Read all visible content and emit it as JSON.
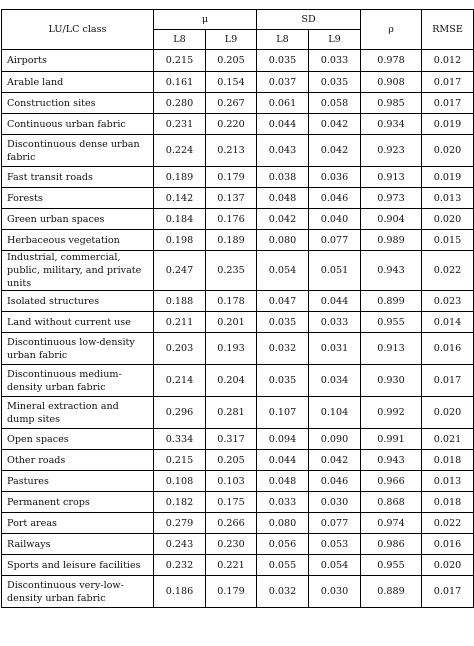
{
  "header": {
    "class_label": "LU/LC class",
    "mu_label": "μ",
    "sd_label": "SD",
    "rho_label": "ρ",
    "rmse_label": "RMSE",
    "l8_label": "L8",
    "l9_label": "L9"
  },
  "rows": [
    {
      "name": "Airports",
      "mu_l8": "0.215",
      "mu_l9": "0.205",
      "sd_l8": "0.035",
      "sd_l9": "0.033",
      "rho": "0.978",
      "rmse": "0.012"
    },
    {
      "name": "Arable land",
      "mu_l8": "0.161",
      "mu_l9": "0.154",
      "sd_l8": "0.037",
      "sd_l9": "0.035",
      "rho": "0.908",
      "rmse": "0.017"
    },
    {
      "name": "Construction sites",
      "mu_l8": "0.280",
      "mu_l9": "0.267",
      "sd_l8": "0.061",
      "sd_l9": "0.058",
      "rho": "0.985",
      "rmse": "0.017"
    },
    {
      "name": "Continuous urban fabric",
      "mu_l8": "0.231",
      "mu_l9": "0.220",
      "sd_l8": "0.044",
      "sd_l9": "0.042",
      "rho": "0.934",
      "rmse": "0.019"
    },
    {
      "name": "Discontinuous dense urban fabric",
      "mu_l8": "0.224",
      "mu_l9": "0.213",
      "sd_l8": "0.043",
      "sd_l9": "0.042",
      "rho": "0.923",
      "rmse": "0.020"
    },
    {
      "name": "Fast transit roads",
      "mu_l8": "0.189",
      "mu_l9": "0.179",
      "sd_l8": "0.038",
      "sd_l9": "0.036",
      "rho": "0.913",
      "rmse": "0.019"
    },
    {
      "name": "Forests",
      "mu_l8": "0.142",
      "mu_l9": "0.137",
      "sd_l8": "0.048",
      "sd_l9": "0.046",
      "rho": "0.973",
      "rmse": "0.013"
    },
    {
      "name": "Green urban spaces",
      "mu_l8": "0.184",
      "mu_l9": "0.176",
      "sd_l8": "0.042",
      "sd_l9": "0.040",
      "rho": "0.904",
      "rmse": "0.020"
    },
    {
      "name": "Herbaceous vegetation",
      "mu_l8": "0.198",
      "mu_l9": "0.189",
      "sd_l8": "0.080",
      "sd_l9": "0.077",
      "rho": "0.989",
      "rmse": "0.015"
    },
    {
      "name": "Industrial, commercial, public, military, and private units",
      "mu_l8": "0.247",
      "mu_l9": "0.235",
      "sd_l8": "0.054",
      "sd_l9": "0.051",
      "rho": "0.943",
      "rmse": "0.022"
    },
    {
      "name": "Isolated structures",
      "mu_l8": "0.188",
      "mu_l9": "0.178",
      "sd_l8": "0.047",
      "sd_l9": "0.044",
      "rho": "0.899",
      "rmse": "0.023"
    },
    {
      "name": "Land without current use",
      "mu_l8": "0.211",
      "mu_l9": "0.201",
      "sd_l8": "0.035",
      "sd_l9": "0.033",
      "rho": "0.955",
      "rmse": "0.014"
    },
    {
      "name": "Discontinuous low-density urban fabric",
      "mu_l8": "0.203",
      "mu_l9": "0.193",
      "sd_l8": "0.032",
      "sd_l9": "0.031",
      "rho": "0.913",
      "rmse": "0.016"
    },
    {
      "name": "Discontinuous medium-density urban fabric",
      "mu_l8": "0.214",
      "mu_l9": "0.204",
      "sd_l8": "0.035",
      "sd_l9": "0.034",
      "rho": "0.930",
      "rmse": "0.017"
    },
    {
      "name": "Mineral extraction and dump sites",
      "mu_l8": "0.296",
      "mu_l9": "0.281",
      "sd_l8": "0.107",
      "sd_l9": "0.104",
      "rho": "0.992",
      "rmse": "0.020"
    },
    {
      "name": "Open spaces",
      "mu_l8": "0.334",
      "mu_l9": "0.317",
      "sd_l8": "0.094",
      "sd_l9": "0.090",
      "rho": "0.991",
      "rmse": "0.021"
    },
    {
      "name": "Other roads",
      "mu_l8": "0.215",
      "mu_l9": "0.205",
      "sd_l8": "0.044",
      "sd_l9": "0.042",
      "rho": "0.943",
      "rmse": "0.018"
    },
    {
      "name": "Pastures",
      "mu_l8": "0.108",
      "mu_l9": "0.103",
      "sd_l8": "0.048",
      "sd_l9": "0.046",
      "rho": "0.966",
      "rmse": "0.013"
    },
    {
      "name": "Permanent crops",
      "mu_l8": "0.182",
      "mu_l9": "0.175",
      "sd_l8": "0.033",
      "sd_l9": "0.030",
      "rho": "0.868",
      "rmse": "0.018"
    },
    {
      "name": "Port areas",
      "mu_l8": "0.279",
      "mu_l9": "0.266",
      "sd_l8": "0.080",
      "sd_l9": "0.077",
      "rho": "0.974",
      "rmse": "0.022"
    },
    {
      "name": "Railways",
      "mu_l8": "0.243",
      "mu_l9": "0.230",
      "sd_l8": "0.056",
      "sd_l9": "0.053",
      "rho": "0.986",
      "rmse": "0.016"
    },
    {
      "name": "Sports and leisure facilities",
      "mu_l8": "0.232",
      "mu_l9": "0.221",
      "sd_l8": "0.055",
      "sd_l9": "0.054",
      "rho": "0.955",
      "rmse": "0.020"
    },
    {
      "name": "Discontinuous very-low-density urban fabric",
      "mu_l8": "0.186",
      "mu_l9": "0.179",
      "sd_l8": "0.032",
      "sd_l9": "0.030",
      "rho": "0.889",
      "rmse": "0.017"
    }
  ]
}
